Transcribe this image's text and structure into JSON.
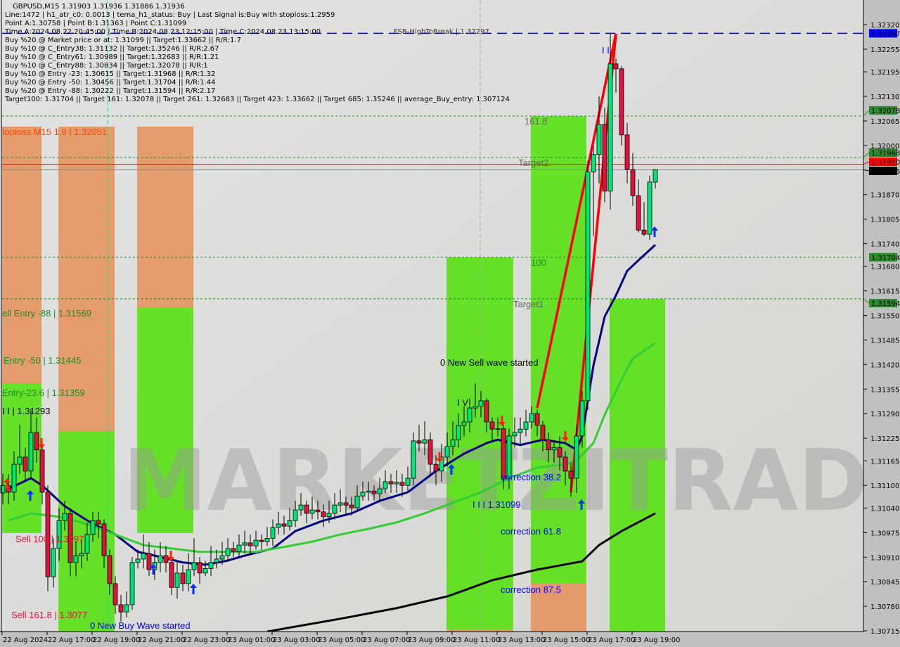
{
  "header": {
    "title": "GBPUSD,M15  1.31903 1.31936 1.31886 1.31936",
    "lines": [
      "Line:1472 | h1_atr_c0: 0.0013 | tema_h1_status: Buy | Last Signal is:Buy with stoploss:1.2959",
      "Point A:1.30758 | Point B:1.31363 | Point C:1.31099",
      "Time A:2024.08.22 20:45:00 | Time B:2024.08.23 12:15:00 | Time C:2024.08.23 13:15:00",
      "Buy %20 @ Market price or at: 1.31099 || Target:1.33662 || R/R:1.7",
      "Buy %10 @ C_Entry38: 1.31132 || Target:1.35246 || R/R:2.67",
      "Buy %10 @ C_Entry61: 1.30989 || Target:1.32683 || R/R:1.21",
      "Buy %10 @ C_Entry88: 1.30834 || Target:1.32078 || R/R:1",
      "Buy %10 @ Entry -23: 1.30615 || Target:1.31968 || R/R:1.32",
      "Buy %20 @ Entry -50: 1.30456 || Target:1.31704 || R/R:1.44",
      "Buy %20 @ Entry -88: 1.30222 || Target:1.31594 || R/R:2.17",
      "Target100: 1.31704 || Target 161: 1.32078 || Target 261: 1.32683 || Target 423: 1.33662 || Target 685: 1.35246 || average_Buy_entry: 1.307124"
    ],
    "fsb_label": "FSB-HighToBreak | 1.32297"
  },
  "watermark": "MARKETZITRADE",
  "chart_data": {
    "type": "candlestick",
    "symbol": "GBPUSD",
    "timeframe": "M15",
    "ylim": [
      1.30715,
      1.3232
    ],
    "y_ticks": [
      "1.32320",
      "1.32255",
      "1.32195",
      "1.32130",
      "1.32065",
      "1.32000",
      "1.31870",
      "1.31805",
      "1.31740",
      "1.31680",
      "1.31615",
      "1.31550",
      "1.31485",
      "1.31420",
      "1.31355",
      "1.31290",
      "1.31225",
      "1.31165",
      "1.31100",
      "1.31040",
      "1.30975",
      "1.30910",
      "1.30845",
      "1.30780",
      "1.30715"
    ],
    "x_ticks": [
      "22 Aug 2024",
      "22 Aug 17:00",
      "22 Aug 19:00",
      "22 Aug 21:00",
      "22 Aug 23:00",
      "23 Aug 01:00",
      "23 Aug 03:00",
      "23 Aug 05:00",
      "23 Aug 07:00",
      "23 Aug 09:00",
      "23 Aug 11:00",
      "23 Aug 13:00",
      "23 Aug 15:00",
      "23 Aug 17:00",
      "23 Aug 19:00"
    ],
    "colors": {
      "bull": "#00e676",
      "bear": "#dc143c",
      "ma_fast": "#000080",
      "ma_mid": "#32cd32",
      "ma_slow": "#000000",
      "trend": "#ff0000",
      "zone_green": "#5ee01e",
      "zone_orange": "#e59866"
    },
    "price_labels": [
      {
        "value": "1.32297",
        "color": "#0000ff",
        "style": "dash"
      },
      {
        "value": "1.32078",
        "color": "#228b22",
        "style": "dot"
      },
      {
        "value": "1.31968",
        "color": "#228b22",
        "style": "dot"
      },
      {
        "value": "1.31950",
        "color": "#ff0000",
        "style": "solid"
      },
      {
        "value": "1.31936",
        "color": "#000000",
        "style": "solid"
      },
      {
        "value": "1.31704",
        "color": "#228b22",
        "style": "dot"
      },
      {
        "value": "1.31594",
        "color": "#228b22",
        "style": "dot"
      }
    ],
    "candles": [
      [
        1.3108,
        1.3113,
        1.3105,
        1.311
      ],
      [
        1.311,
        1.3113,
        1.3105,
        1.31082
      ],
      [
        1.31082,
        1.3119,
        1.3106,
        1.31156
      ],
      [
        1.31156,
        1.3126,
        1.3113,
        1.31175
      ],
      [
        1.31175,
        1.312,
        1.3111,
        1.31138
      ],
      [
        1.31138,
        1.313,
        1.3112,
        1.3124
      ],
      [
        1.3124,
        1.3128,
        1.3116,
        1.31194
      ],
      [
        1.31194,
        1.3121,
        1.3105,
        1.31082
      ],
      [
        1.31082,
        1.311,
        1.3082,
        1.30858
      ],
      [
        1.30858,
        1.3096,
        1.3083,
        1.30933
      ],
      [
        1.30933,
        1.3104,
        1.309,
        1.31007
      ],
      [
        1.31007,
        1.3106,
        1.3098,
        1.31026
      ],
      [
        1.31026,
        1.3104,
        1.3086,
        1.30896
      ],
      [
        1.30896,
        1.3095,
        1.3086,
        1.30914
      ],
      [
        1.30914,
        1.3096,
        1.3088,
        1.3092
      ],
      [
        1.3092,
        1.31,
        1.309,
        1.3097
      ],
      [
        1.3097,
        1.3103,
        1.3095,
        1.31007
      ],
      [
        1.31007,
        1.3103,
        1.3096,
        1.30998
      ],
      [
        1.30998,
        1.3101,
        1.3088,
        1.30914
      ],
      [
        1.30914,
        1.3093,
        1.3081,
        1.3084
      ],
      [
        1.3084,
        1.3086,
        1.3076,
        1.30784
      ],
      [
        1.30784,
        1.3081,
        1.3074,
        1.30765
      ],
      [
        1.30765,
        1.3082,
        1.3075,
        1.30784
      ],
      [
        1.30784,
        1.3091,
        1.3077,
        1.30896
      ],
      [
        1.30896,
        1.3093,
        1.3088,
        1.30905
      ],
      [
        1.30905,
        1.3097,
        1.3088,
        1.3092
      ],
      [
        1.3092,
        1.3095,
        1.3086,
        1.30877
      ],
      [
        1.30877,
        1.3093,
        1.3085,
        1.30896
      ],
      [
        1.30896,
        1.3095,
        1.3087,
        1.30914
      ],
      [
        1.30914,
        1.3094,
        1.3087,
        1.30896
      ],
      [
        1.30896,
        1.3091,
        1.3081,
        1.3083
      ],
      [
        1.3083,
        1.309,
        1.308,
        1.30868
      ],
      [
        1.30868,
        1.3089,
        1.3082,
        1.3084
      ],
      [
        1.3084,
        1.3092,
        1.3082,
        1.30877
      ],
      [
        1.30877,
        1.3096,
        1.3086,
        1.30896
      ],
      [
        1.30896,
        1.3091,
        1.3084,
        1.30868
      ],
      [
        1.30868,
        1.309,
        1.3086,
        1.3088
      ],
      [
        1.3088,
        1.3094,
        1.3086,
        1.30896
      ],
      [
        1.30896,
        1.3093,
        1.3088,
        1.30905
      ],
      [
        1.30905,
        1.3095,
        1.3089,
        1.30914
      ],
      [
        1.30914,
        1.3096,
        1.309,
        1.30933
      ],
      [
        1.30933,
        1.3095,
        1.3091,
        1.30925
      ],
      [
        1.30925,
        1.3097,
        1.3091,
        1.30942
      ],
      [
        1.30942,
        1.3098,
        1.3092,
        1.30948
      ],
      [
        1.30948,
        1.3097,
        1.3092,
        1.3094
      ],
      [
        1.3094,
        1.3098,
        1.3093,
        1.30955
      ],
      [
        1.30955,
        1.3097,
        1.3093,
        1.30951
      ],
      [
        1.30951,
        1.3099,
        1.3094,
        1.3096
      ],
      [
        1.3096,
        1.3101,
        1.3094,
        1.30989
      ],
      [
        1.30989,
        1.3103,
        1.3097,
        1.30998
      ],
      [
        1.30998,
        1.3102,
        1.3097,
        1.30992
      ],
      [
        1.30992,
        1.3104,
        1.3098,
        1.31007
      ],
      [
        1.31007,
        1.3106,
        1.3099,
        1.31035
      ],
      [
        1.31035,
        1.3108,
        1.3102,
        1.31048
      ],
      [
        1.31048,
        1.3106,
        1.31,
        1.31026
      ],
      [
        1.31026,
        1.3107,
        1.3101,
        1.31035
      ],
      [
        1.31035,
        1.3106,
        1.3101,
        1.3103
      ],
      [
        1.3103,
        1.3105,
        1.3099,
        1.31017
      ],
      [
        1.31017,
        1.3106,
        1.31,
        1.31026
      ],
      [
        1.31026,
        1.3108,
        1.3101,
        1.31048
      ],
      [
        1.31048,
        1.3109,
        1.3103,
        1.31054
      ],
      [
        1.31054,
        1.3107,
        1.3102,
        1.31048
      ],
      [
        1.31048,
        1.3107,
        1.3102,
        1.31041
      ],
      [
        1.31041,
        1.311,
        1.3103,
        1.31072
      ],
      [
        1.31072,
        1.3111,
        1.3106,
        1.31082
      ],
      [
        1.31082,
        1.3111,
        1.3106,
        1.31085
      ],
      [
        1.31085,
        1.311,
        1.3106,
        1.31078
      ],
      [
        1.31078,
        1.3112,
        1.3106,
        1.31091
      ],
      [
        1.31091,
        1.3114,
        1.3108,
        1.3111
      ],
      [
        1.3111,
        1.3113,
        1.3108,
        1.31104
      ],
      [
        1.31104,
        1.3114,
        1.3108,
        1.31108
      ],
      [
        1.31108,
        1.3113,
        1.3107,
        1.311
      ],
      [
        1.311,
        1.3115,
        1.3108,
        1.31119
      ],
      [
        1.31119,
        1.3124,
        1.311,
        1.31218
      ],
      [
        1.31218,
        1.3126,
        1.3119,
        1.31212
      ],
      [
        1.31212,
        1.3127,
        1.3118,
        1.31221
      ],
      [
        1.31221,
        1.3124,
        1.3113,
        1.31156
      ],
      [
        1.31156,
        1.3118,
        1.311,
        1.31138
      ],
      [
        1.31138,
        1.3121,
        1.3111,
        1.31175
      ],
      [
        1.31175,
        1.3124,
        1.3115,
        1.31203
      ],
      [
        1.31203,
        1.3127,
        1.3118,
        1.31221
      ],
      [
        1.31221,
        1.3129,
        1.312,
        1.31259
      ],
      [
        1.31259,
        1.3131,
        1.3123,
        1.31268
      ],
      [
        1.31268,
        1.3133,
        1.3124,
        1.31305
      ],
      [
        1.31305,
        1.3137,
        1.3128,
        1.3131
      ],
      [
        1.3131,
        1.3135,
        1.3128,
        1.31324
      ],
      [
        1.31324,
        1.3133,
        1.3124,
        1.31268
      ],
      [
        1.31268,
        1.3128,
        1.3122,
        1.31249
      ],
      [
        1.31249,
        1.3128,
        1.3123,
        1.3125
      ],
      [
        1.3125,
        1.3126,
        1.3109,
        1.31119
      ],
      [
        1.31119,
        1.3125,
        1.3109,
        1.31231
      ],
      [
        1.31231,
        1.3128,
        1.312,
        1.3124
      ],
      [
        1.3124,
        1.3128,
        1.3121,
        1.31249
      ],
      [
        1.31249,
        1.313,
        1.3123,
        1.31268
      ],
      [
        1.31268,
        1.3131,
        1.3125,
        1.3129
      ],
      [
        1.3129,
        1.313,
        1.3123,
        1.31259
      ],
      [
        1.31259,
        1.3127,
        1.3119,
        1.31221
      ],
      [
        1.31221,
        1.3124,
        1.3116,
        1.31194
      ],
      [
        1.31194,
        1.3122,
        1.3116,
        1.312
      ],
      [
        1.312,
        1.3123,
        1.3114,
        1.31175
      ],
      [
        1.31175,
        1.3119,
        1.311,
        1.31138
      ],
      [
        1.31138,
        1.3116,
        1.3107,
        1.31119
      ],
      [
        1.31119,
        1.3126,
        1.3108,
        1.31231
      ],
      [
        1.31231,
        1.3135,
        1.312,
        1.31324
      ],
      [
        1.31324,
        1.3196,
        1.313,
        1.3193
      ],
      [
        1.3193,
        1.32,
        1.3176,
        1.31976
      ],
      [
        1.31976,
        1.3213,
        1.319,
        1.32056
      ],
      [
        1.32056,
        1.321,
        1.3185,
        1.31879
      ],
      [
        1.31879,
        1.32296,
        1.3183,
        1.32216
      ],
      [
        1.32216,
        1.3223,
        1.3214,
        1.32203
      ],
      [
        1.32203,
        1.3221,
        1.32,
        1.32028
      ],
      [
        1.32028,
        1.3206,
        1.319,
        1.31936
      ],
      [
        1.31936,
        1.3198,
        1.3184,
        1.31867
      ],
      [
        1.31867,
        1.3191,
        1.3177,
        1.31776
      ],
      [
        1.31776,
        1.3185,
        1.3176,
        1.31765
      ],
      [
        1.31765,
        1.3192,
        1.3175,
        1.31903
      ],
      [
        1.31903,
        1.31936,
        1.31886,
        1.31936
      ]
    ],
    "lines": [
      {
        "id": "ma-fast",
        "color": "#000080",
        "points": [
          [
            1,
            1.31091
          ],
          [
            5,
            1.31119
          ],
          [
            7,
            1.311
          ],
          [
            11,
            1.31045
          ],
          [
            16,
            1.30998
          ],
          [
            20,
            1.3097
          ],
          [
            24,
            1.30924
          ],
          [
            27,
            1.30914
          ],
          [
            32,
            1.30896
          ],
          [
            36,
            1.3089
          ],
          [
            40,
            1.30901
          ],
          [
            43,
            1.30914
          ],
          [
            48,
            1.30933
          ],
          [
            52,
            1.30979
          ],
          [
            57,
            1.31007
          ],
          [
            62,
            1.31026
          ],
          [
            67,
            1.31059
          ],
          [
            72,
            1.31082
          ],
          [
            77,
            1.31138
          ],
          [
            82,
            1.31184
          ],
          [
            86,
            1.31212
          ],
          [
            88,
            1.31221
          ],
          [
            92,
            1.31207
          ],
          [
            96,
            1.31221
          ],
          [
            100,
            1.31212
          ],
          [
            102,
            1.31194
          ],
          [
            103,
            1.31231
          ],
          [
            105,
            1.31417
          ],
          [
            107,
            1.31547
          ],
          [
            109,
            1.31603
          ],
          [
            111,
            1.31668
          ],
          [
            113,
            1.31696
          ],
          [
            116,
            1.31737
          ]
        ]
      },
      {
        "id": "ma-mid",
        "color": "#32cd32",
        "points": [
          [
            1,
            1.31007
          ],
          [
            5,
            1.31026
          ],
          [
            10,
            1.31017
          ],
          [
            15,
            1.30998
          ],
          [
            20,
            1.3097
          ],
          [
            25,
            1.30942
          ],
          [
            30,
            1.30933
          ],
          [
            35,
            1.30924
          ],
          [
            40,
            1.30924
          ],
          [
            45,
            1.30924
          ],
          [
            50,
            1.30937
          ],
          [
            55,
            1.30951
          ],
          [
            60,
            1.3097
          ],
          [
            65,
            1.30985
          ],
          [
            70,
            1.31002
          ],
          [
            75,
            1.31026
          ],
          [
            80,
            1.31054
          ],
          [
            85,
            1.31082
          ],
          [
            90,
            1.31119
          ],
          [
            95,
            1.31147
          ],
          [
            100,
            1.31156
          ],
          [
            102,
            1.31166
          ],
          [
            105,
            1.31212
          ],
          [
            107,
            1.31287
          ],
          [
            110,
            1.3138
          ],
          [
            112,
            1.31436
          ],
          [
            116,
            1.31477
          ]
        ]
      },
      {
        "id": "ma-slow",
        "color": "#000000",
        "points": [
          [
            47,
            1.30713
          ],
          [
            60,
            1.30747
          ],
          [
            70,
            1.30775
          ],
          [
            79,
            1.30806
          ],
          [
            87,
            1.30849
          ],
          [
            95,
            1.30877
          ],
          [
            103,
            1.30899
          ],
          [
            106,
            1.30942
          ],
          [
            110,
            1.30979
          ],
          [
            116,
            1.31026
          ]
        ]
      },
      {
        "id": "trend-1",
        "color": "#ff0000",
        "points": [
          [
            95,
            1.31305
          ],
          [
            109,
            1.32296
          ]
        ]
      },
      {
        "id": "trend-2",
        "color": "#ff0000",
        "points": [
          [
            101,
            1.31082
          ],
          [
            109,
            1.32296
          ]
        ]
      }
    ],
    "annotations": {
      "stoploss": "toploss M15 1.9 | 1.32051",
      "sell_entry_88": "ell Entry -88 | 1.31569",
      "entry_50": "Entry -50 | 1.31445",
      "entry_236": "Entry-23.6 | 1.31359",
      "wave_label_left": "I I | 1.31293",
      "sell_100": "Sell 100 | 1.3097",
      "sell_1618": "Sell 161.8 | 1.3077",
      "new_buy_wave": "0 New Buy Wave started",
      "new_sell_wave": "0 New Sell wave started",
      "wave_iv": "I V",
      "fib_1618": "161.8",
      "target2": "Target2",
      "fib_100": "100",
      "target1": "Target1",
      "correction_382": "correction 38.2",
      "correction_618": "correction 61.8",
      "correction_875": "correction 87.5",
      "point_c": "I I I 1.31099",
      "wave_top": "I I"
    }
  }
}
